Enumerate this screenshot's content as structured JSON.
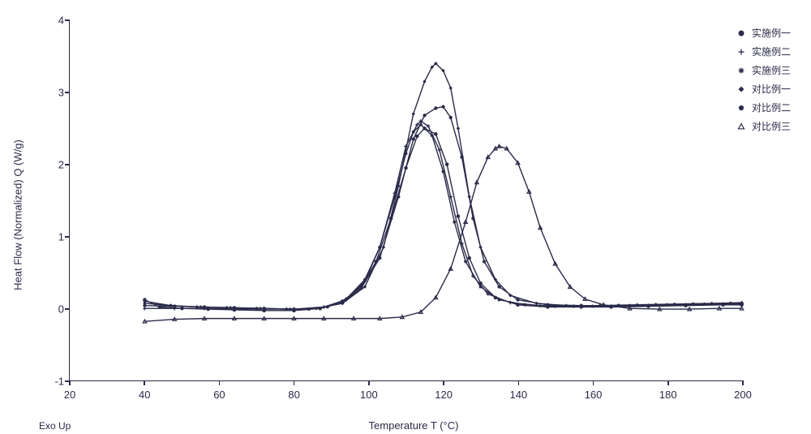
{
  "chart": {
    "type": "line",
    "background_color": "#ffffff",
    "line_color": "#2a2a4a",
    "axis_color": "#2a2a4a",
    "xlabel": "Temperature T (°C)",
    "ylabel": "Heat Flow (Normalized) Q (W/g)",
    "exo_up_label": "Exo Up",
    "label_fontsize": 13,
    "tick_fontsize": 13,
    "legend_fontsize": 12,
    "xlim": [
      20,
      200
    ],
    "ylim": [
      -1,
      4
    ],
    "xticks": [
      20,
      40,
      60,
      80,
      100,
      120,
      140,
      160,
      180,
      200
    ],
    "yticks": [
      -1,
      0,
      1,
      2,
      3,
      4
    ],
    "line_width": 1.4,
    "marker_size": 4.5,
    "legend_position": "top-right",
    "series": [
      {
        "label": "实施例一",
        "marker": "circle-filled",
        "data": [
          [
            40,
            0.12
          ],
          [
            44,
            0.02
          ],
          [
            50,
            0.0
          ],
          [
            57,
            -0.01
          ],
          [
            64,
            -0.02
          ],
          [
            72,
            -0.03
          ],
          [
            80,
            -0.03
          ],
          [
            87,
            0.0
          ],
          [
            93,
            0.1
          ],
          [
            98,
            0.3
          ],
          [
            102,
            0.65
          ],
          [
            106,
            1.25
          ],
          [
            110,
            1.95
          ],
          [
            113,
            2.39
          ],
          [
            115,
            2.5
          ],
          [
            118,
            2.42
          ],
          [
            121,
            2.0
          ],
          [
            124,
            1.28
          ],
          [
            127,
            0.7
          ],
          [
            130,
            0.35
          ],
          [
            134,
            0.15
          ],
          [
            140,
            0.05
          ],
          [
            148,
            0.02
          ],
          [
            157,
            0.02
          ],
          [
            165,
            0.02
          ],
          [
            175,
            0.03
          ],
          [
            185,
            0.04
          ],
          [
            195,
            0.05
          ],
          [
            200,
            0.05
          ]
        ]
      },
      {
        "label": "实施例二",
        "marker": "plus",
        "data": [
          [
            40,
            0.0
          ],
          [
            48,
            0.0
          ],
          [
            56,
            0.0
          ],
          [
            64,
            -0.01
          ],
          [
            72,
            -0.01
          ],
          [
            80,
            -0.01
          ],
          [
            88,
            0.02
          ],
          [
            94,
            0.12
          ],
          [
            99,
            0.38
          ],
          [
            103,
            0.85
          ],
          [
            107,
            1.6
          ],
          [
            110,
            2.25
          ],
          [
            113,
            2.55
          ],
          [
            114,
            2.6
          ],
          [
            116,
            2.53
          ],
          [
            119,
            2.2
          ],
          [
            122,
            1.55
          ],
          [
            125,
            0.9
          ],
          [
            128,
            0.45
          ],
          [
            132,
            0.2
          ],
          [
            138,
            0.08
          ],
          [
            146,
            0.04
          ],
          [
            155,
            0.03
          ],
          [
            165,
            0.03
          ],
          [
            175,
            0.04
          ],
          [
            185,
            0.05
          ],
          [
            195,
            0.06
          ],
          [
            200,
            0.06
          ]
        ]
      },
      {
        "label": "实施例三",
        "marker": "asterisk",
        "data": [
          [
            40,
            0.04
          ],
          [
            48,
            0.03
          ],
          [
            56,
            0.02
          ],
          [
            64,
            0.01
          ],
          [
            72,
            0.0
          ],
          [
            80,
            -0.01
          ],
          [
            87,
            0.0
          ],
          [
            93,
            0.08
          ],
          [
            98,
            0.28
          ],
          [
            103,
            0.7
          ],
          [
            108,
            1.55
          ],
          [
            112,
            2.35
          ],
          [
            115,
            2.68
          ],
          [
            118,
            2.78
          ],
          [
            120,
            2.8
          ],
          [
            122,
            2.65
          ],
          [
            125,
            2.1
          ],
          [
            128,
            1.25
          ],
          [
            131,
            0.65
          ],
          [
            135,
            0.3
          ],
          [
            140,
            0.12
          ],
          [
            148,
            0.05
          ],
          [
            157,
            0.04
          ],
          [
            167,
            0.04
          ],
          [
            177,
            0.05
          ],
          [
            187,
            0.06
          ],
          [
            197,
            0.07
          ],
          [
            200,
            0.07
          ]
        ]
      },
      {
        "label": "对比例一",
        "marker": "diamond-filled",
        "data": [
          [
            40,
            0.07
          ],
          [
            47,
            0.04
          ],
          [
            55,
            0.02
          ],
          [
            63,
            0.01
          ],
          [
            71,
            0.0
          ],
          [
            79,
            -0.01
          ],
          [
            86,
            0.0
          ],
          [
            93,
            0.07
          ],
          [
            99,
            0.3
          ],
          [
            104,
            0.85
          ],
          [
            108,
            1.7
          ],
          [
            112,
            2.7
          ],
          [
            115,
            3.15
          ],
          [
            117,
            3.35
          ],
          [
            118,
            3.4
          ],
          [
            120,
            3.3
          ],
          [
            122,
            3.06
          ],
          [
            124,
            2.5
          ],
          [
            127,
            1.55
          ],
          [
            130,
            0.85
          ],
          [
            134,
            0.4
          ],
          [
            138,
            0.18
          ],
          [
            145,
            0.07
          ],
          [
            153,
            0.04
          ],
          [
            162,
            0.04
          ],
          [
            172,
            0.05
          ],
          [
            182,
            0.06
          ],
          [
            192,
            0.07
          ],
          [
            200,
            0.08
          ]
        ]
      },
      {
        "label": "对比例二",
        "marker": "pentagon-filled",
        "data": [
          [
            40,
            0.1
          ],
          [
            47,
            0.04
          ],
          [
            54,
            0.02
          ],
          [
            62,
            0.01
          ],
          [
            70,
            0.0
          ],
          [
            78,
            -0.01
          ],
          [
            84,
            -0.01
          ],
          [
            89,
            0.02
          ],
          [
            94,
            0.13
          ],
          [
            99,
            0.4
          ],
          [
            103,
            0.85
          ],
          [
            107,
            1.55
          ],
          [
            110,
            2.15
          ],
          [
            112,
            2.45
          ],
          [
            114,
            2.55
          ],
          [
            117,
            2.4
          ],
          [
            120,
            1.9
          ],
          [
            123,
            1.2
          ],
          [
            126,
            0.65
          ],
          [
            130,
            0.3
          ],
          [
            135,
            0.12
          ],
          [
            142,
            0.05
          ],
          [
            150,
            0.03
          ],
          [
            160,
            0.03
          ],
          [
            170,
            0.04
          ],
          [
            180,
            0.05
          ],
          [
            190,
            0.06
          ],
          [
            200,
            0.07
          ]
        ]
      },
      {
        "label": "对比例三",
        "marker": "triangle-open",
        "data": [
          [
            40,
            -0.18
          ],
          [
            48,
            -0.15
          ],
          [
            56,
            -0.14
          ],
          [
            64,
            -0.14
          ],
          [
            72,
            -0.14
          ],
          [
            80,
            -0.14
          ],
          [
            88,
            -0.14
          ],
          [
            96,
            -0.14
          ],
          [
            103,
            -0.14
          ],
          [
            109,
            -0.12
          ],
          [
            114,
            -0.05
          ],
          [
            118,
            0.15
          ],
          [
            122,
            0.55
          ],
          [
            126,
            1.2
          ],
          [
            129,
            1.75
          ],
          [
            132,
            2.1
          ],
          [
            134,
            2.22
          ],
          [
            135,
            2.25
          ],
          [
            137,
            2.22
          ],
          [
            140,
            2.02
          ],
          [
            143,
            1.62
          ],
          [
            146,
            1.12
          ],
          [
            150,
            0.62
          ],
          [
            154,
            0.3
          ],
          [
            158,
            0.13
          ],
          [
            163,
            0.05
          ],
          [
            170,
            0.0
          ],
          [
            178,
            -0.01
          ],
          [
            186,
            -0.01
          ],
          [
            194,
            0.0
          ],
          [
            200,
            0.0
          ]
        ]
      }
    ]
  }
}
